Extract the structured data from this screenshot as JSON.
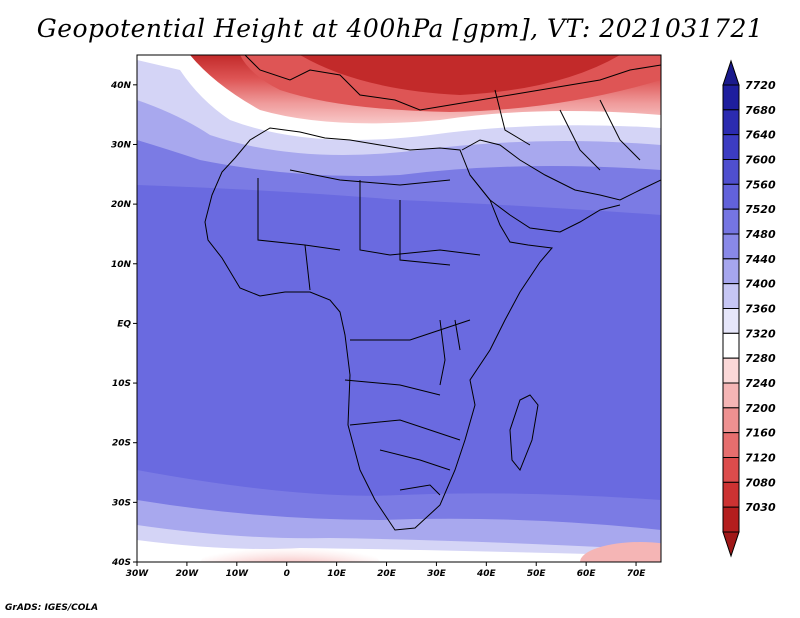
{
  "title": "Geopotential Height at 400hPa [gpm], VT: 2021031721",
  "credit": "GrADS: IGES/COLA",
  "map": {
    "lon_range": [
      -30,
      75
    ],
    "lat_range": [
      -40,
      45
    ],
    "lon_ticks": [
      {
        "value": -30,
        "label": "30W"
      },
      {
        "value": -20,
        "label": "20W"
      },
      {
        "value": -10,
        "label": "10W"
      },
      {
        "value": 0,
        "label": "0"
      },
      {
        "value": 10,
        "label": "10E"
      },
      {
        "value": 20,
        "label": "20E"
      },
      {
        "value": 30,
        "label": "30E"
      },
      {
        "value": 40,
        "label": "40E"
      },
      {
        "value": 50,
        "label": "50E"
      },
      {
        "value": 60,
        "label": "60E"
      },
      {
        "value": 70,
        "label": "70E"
      }
    ],
    "lat_ticks": [
      {
        "value": 40,
        "label": "40N"
      },
      {
        "value": 30,
        "label": "30N"
      },
      {
        "value": 20,
        "label": "20N"
      },
      {
        "value": 10,
        "label": "10N"
      },
      {
        "value": 0,
        "label": "EQ"
      },
      {
        "value": -10,
        "label": "10S"
      },
      {
        "value": -20,
        "label": "20S"
      },
      {
        "value": -30,
        "label": "30S"
      },
      {
        "value": -40,
        "label": "40S"
      }
    ]
  },
  "colorbar": {
    "levels": [
      {
        "label": "7720",
        "color": "#1e1e9e"
      },
      {
        "label": "7680",
        "color": "#2b2bb0"
      },
      {
        "label": "7640",
        "color": "#3c3cc2"
      },
      {
        "label": "7600",
        "color": "#4f4fcf"
      },
      {
        "label": "7560",
        "color": "#6262db"
      },
      {
        "label": "7520",
        "color": "#7575e2"
      },
      {
        "label": "7480",
        "color": "#8989e8"
      },
      {
        "label": "7440",
        "color": "#a6a6ee"
      },
      {
        "label": "7400",
        "color": "#c6c6f4"
      },
      {
        "label": "7360",
        "color": "#e6e6fa"
      },
      {
        "label": "7320",
        "color": "#ffffff"
      },
      {
        "label": "7280",
        "color": "#fbd8d8"
      },
      {
        "label": "7240",
        "color": "#f5b5b5"
      },
      {
        "label": "7200",
        "color": "#ee9191"
      },
      {
        "label": "7160",
        "color": "#e66e6e"
      },
      {
        "label": "7120",
        "color": "#dc4c4c"
      },
      {
        "label": "7080",
        "color": "#cc3232"
      },
      {
        "label": "7030",
        "color": "#b41e1e"
      }
    ],
    "top_color": "#1a1a8c",
    "bottom_color": "#a01818"
  },
  "colors": {
    "deep_blue": "#6a6ae0",
    "mid_blue": "#7b7be4",
    "light_blue": "#a8a8ee",
    "pale_blue": "#d4d4f6",
    "white": "#ffffff",
    "pink": "#f8c8c8",
    "light_red": "#ef9a9a",
    "red": "#de5555",
    "dark_red": "#c22a2a"
  }
}
